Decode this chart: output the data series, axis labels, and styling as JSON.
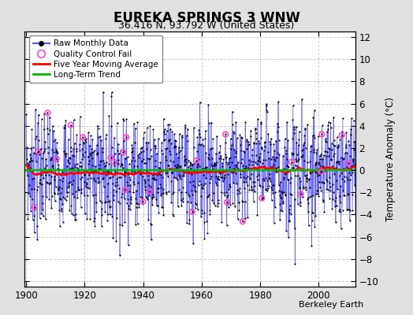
{
  "title": "EUREKA SPRINGS 3 WNW",
  "subtitle": "36.416 N, 93.792 W (United States)",
  "ylabel": "Temperature Anomaly (°C)",
  "credit": "Berkeley Earth",
  "start_year": 1900,
  "end_year": 2013,
  "ylim": [
    -10.5,
    12.5
  ],
  "yticks": [
    -10,
    -8,
    -6,
    -4,
    -2,
    0,
    2,
    4,
    6,
    8,
    10,
    12
  ],
  "xticks": [
    1900,
    1920,
    1940,
    1960,
    1980,
    2000
  ],
  "background_color": "#e0e0e0",
  "plot_bg_color": "#ffffff",
  "grid_color": "#cccccc",
  "line_color": "#5555ff",
  "dot_color": "#000000",
  "ma_color": "#ff0000",
  "trend_color": "#00bb00",
  "qc_color": "#ff44cc",
  "seed_data": 7,
  "seed_qc": 55
}
